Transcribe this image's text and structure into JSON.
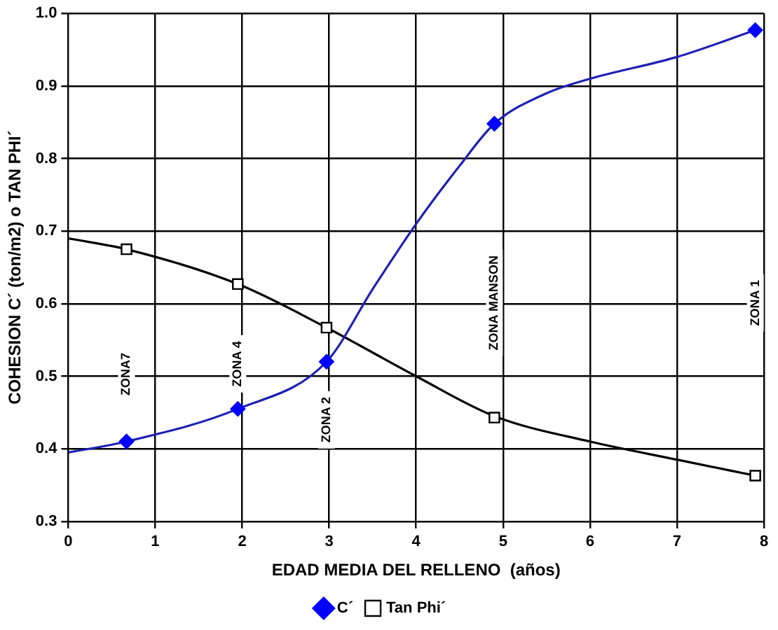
{
  "chart_data": {
    "type": "scatter",
    "xlabel": "EDAD MEDIA DEL RELLENO  (años)",
    "ylabel": "COHESION C´ (ton/m2) o TAN PHI´",
    "xlim": [
      0,
      8
    ],
    "xticks": [
      0,
      1,
      2,
      3,
      4,
      5,
      6,
      7,
      8
    ],
    "ylim": [
      0.3,
      1.0
    ],
    "yticks": [
      {
        "value": 0.3,
        "label": "0.3"
      },
      {
        "value": 0.4,
        "label": "0.4"
      },
      {
        "value": 0.5,
        "label": "0.5"
      },
      {
        "value": 0.6,
        "label": "0.6"
      },
      {
        "value": 0.7,
        "label": "0.7"
      },
      {
        "value": 0.8,
        "label": "0.8"
      },
      {
        "value": 0.9,
        "label": "0.9"
      },
      {
        "value": 1.0,
        "label": "1.0"
      }
    ],
    "grid": true,
    "legend": "bottom",
    "series": [
      {
        "name": "C´",
        "marker": "diamond",
        "color": "#0000ff",
        "x": [
          0.67,
          1.95,
          2.97,
          4.9,
          7.9
        ],
        "values": [
          0.41,
          0.455,
          0.52,
          0.848,
          0.977
        ]
      },
      {
        "name": "Tan Phi´",
        "marker": "square",
        "color": "#000000",
        "x": [
          0.67,
          1.95,
          2.97,
          4.9,
          7.9
        ],
        "values": [
          0.675,
          0.627,
          0.567,
          0.443,
          0.363
        ]
      },
      {
        "type": "line",
        "marker": "none",
        "color": "#1f1fb4",
        "x": [
          0,
          0.67,
          1.95,
          2.97,
          3.5,
          4,
          4.5,
          4.9,
          5.5,
          6,
          7,
          7.9
        ],
        "values": [
          0.395,
          0.41,
          0.455,
          0.52,
          0.62,
          0.71,
          0.79,
          0.848,
          0.89,
          0.91,
          0.94,
          0.977
        ]
      },
      {
        "type": "line",
        "marker": "none",
        "color": "#000000",
        "x": [
          0,
          0.67,
          1.95,
          2.97,
          4,
          4.9,
          6,
          7,
          7.9
        ],
        "values": [
          0.69,
          0.675,
          0.627,
          0.567,
          0.5,
          0.445,
          0.41,
          0.385,
          0.363
        ]
      }
    ],
    "annotations": [
      "ZONA7",
      "ZONA 4",
      "ZONA 2",
      "ZONA MANSON",
      "ZONA 1"
    ]
  }
}
